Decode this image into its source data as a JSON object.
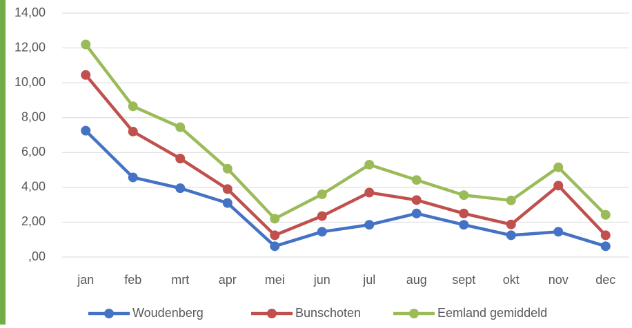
{
  "chart_data": {
    "type": "line",
    "categories": [
      "jan",
      "feb",
      "mrt",
      "apr",
      "mei",
      "jun",
      "jul",
      "aug",
      "sept",
      "okt",
      "nov",
      "dec"
    ],
    "series": [
      {
        "name": "Woudenberg",
        "color": "#4472c4",
        "values": [
          7.25,
          4.57,
          3.95,
          3.1,
          0.62,
          1.45,
          1.85,
          2.5,
          1.85,
          1.25,
          1.45,
          0.62
        ]
      },
      {
        "name": "Bunschoten",
        "color": "#c0504d",
        "values": [
          10.45,
          7.2,
          5.65,
          3.9,
          1.25,
          2.35,
          3.7,
          3.27,
          2.5,
          1.87,
          4.1,
          1.25
        ]
      },
      {
        "name": "Eemland gemiddeld",
        "color": "#9bbb59",
        "values": [
          12.2,
          8.65,
          7.45,
          5.07,
          2.2,
          3.6,
          5.3,
          4.42,
          3.55,
          3.25,
          5.15,
          2.42
        ]
      }
    ],
    "ylim": [
      0,
      14
    ],
    "yticks": [
      {
        "value": 0,
        "label": ",00"
      },
      {
        "value": 2,
        "label": "2,00"
      },
      {
        "value": 4,
        "label": "4,00"
      },
      {
        "value": 6,
        "label": "6,00"
      },
      {
        "value": 8,
        "label": "8,00"
      },
      {
        "value": 10,
        "label": "10,00"
      },
      {
        "value": 12,
        "label": "12,00"
      },
      {
        "value": 14,
        "label": "14,00"
      }
    ],
    "grid": true,
    "legend": "bottom"
  }
}
